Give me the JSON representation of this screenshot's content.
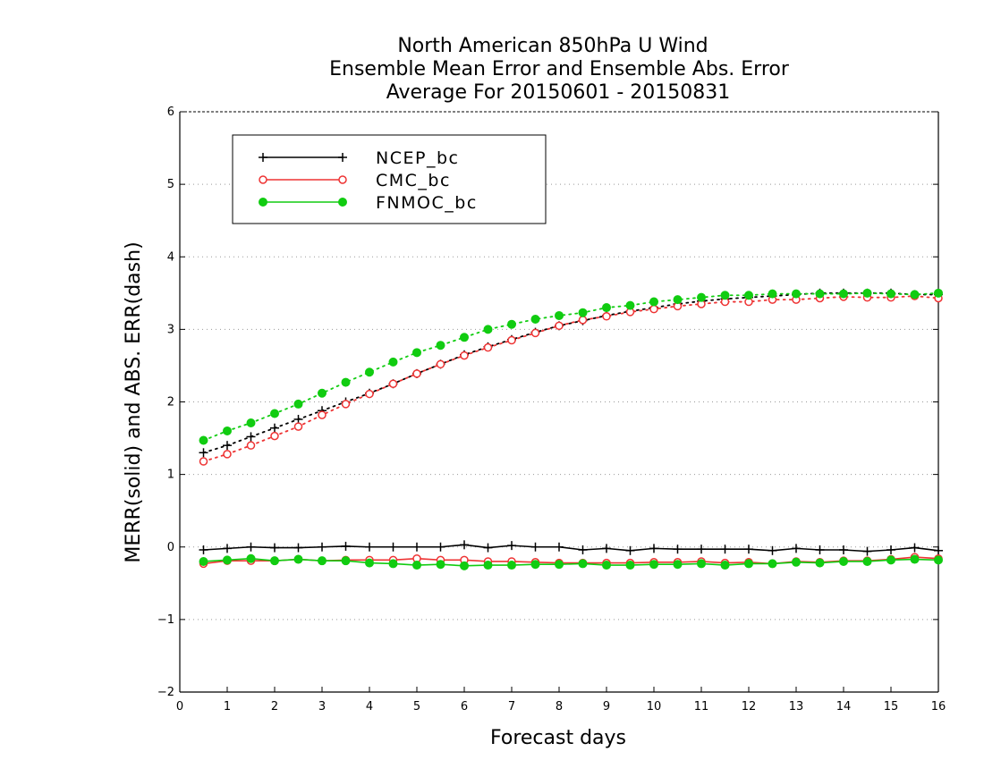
{
  "chart_data": {
    "type": "line",
    "title": [
      "North American 850hPa U Wind",
      "Ensemble Mean Error and Ensemble Abs. Error",
      "Average For 20150601 - 20150831"
    ],
    "xlabel": "Forecast days",
    "ylabel": "MERR(solid) and ABS. ERR(dash)",
    "xlim": [
      0,
      16
    ],
    "ylim": [
      -2,
      6
    ],
    "xticks": [
      0,
      1,
      2,
      3,
      4,
      5,
      6,
      7,
      8,
      9,
      10,
      11,
      12,
      13,
      14,
      15,
      16
    ],
    "yticks": [
      -2,
      -1,
      0,
      1,
      2,
      3,
      4,
      5,
      6
    ],
    "ytick_labels": [
      "−2",
      "−1",
      "0",
      "1",
      "2",
      "3",
      "4",
      "5",
      "6"
    ],
    "grid": "horizontal dotted",
    "legend_position": "top-left",
    "x": [
      0.5,
      1.0,
      1.5,
      2.0,
      2.5,
      3.0,
      3.5,
      4.0,
      4.5,
      5.0,
      5.5,
      6.0,
      6.5,
      7.0,
      7.5,
      8.0,
      8.5,
      9.0,
      9.5,
      10.0,
      10.5,
      11.0,
      11.5,
      12.0,
      12.5,
      13.0,
      13.5,
      14.0,
      14.5,
      15.0,
      15.5,
      16.0
    ],
    "series": [
      {
        "name": "NCEP_bc",
        "color": "#000000",
        "marker": "plus",
        "merr": [
          -0.04,
          -0.02,
          0.0,
          -0.01,
          -0.01,
          0.0,
          0.01,
          0.0,
          0.0,
          0.0,
          0.0,
          0.03,
          -0.01,
          0.02,
          0.0,
          0.0,
          -0.04,
          -0.02,
          -0.05,
          -0.02,
          -0.03,
          -0.03,
          -0.03,
          -0.03,
          -0.05,
          -0.02,
          -0.04,
          -0.04,
          -0.06,
          -0.04,
          -0.01,
          -0.05
        ],
        "abs_err": [
          1.3,
          1.4,
          1.52,
          1.64,
          1.76,
          1.88,
          2.0,
          2.12,
          2.25,
          2.39,
          2.52,
          2.65,
          2.76,
          2.86,
          2.96,
          3.05,
          3.12,
          3.19,
          3.25,
          3.3,
          3.35,
          3.39,
          3.42,
          3.44,
          3.46,
          3.48,
          3.5,
          3.5,
          3.5,
          3.5,
          3.48,
          3.48
        ]
      },
      {
        "name": "CMC_bc",
        "color": "#ee3333",
        "marker": "open-circle",
        "merr": [
          -0.23,
          -0.19,
          -0.19,
          -0.19,
          -0.17,
          -0.19,
          -0.18,
          -0.18,
          -0.18,
          -0.16,
          -0.18,
          -0.18,
          -0.2,
          -0.2,
          -0.21,
          -0.22,
          -0.22,
          -0.22,
          -0.22,
          -0.21,
          -0.21,
          -0.2,
          -0.22,
          -0.21,
          -0.23,
          -0.2,
          -0.21,
          -0.19,
          -0.19,
          -0.17,
          -0.14,
          -0.16
        ],
        "abs_err": [
          1.18,
          1.28,
          1.4,
          1.53,
          1.66,
          1.82,
          1.97,
          2.11,
          2.25,
          2.39,
          2.52,
          2.64,
          2.75,
          2.85,
          2.95,
          3.05,
          3.13,
          3.18,
          3.24,
          3.28,
          3.32,
          3.35,
          3.38,
          3.38,
          3.41,
          3.41,
          3.43,
          3.45,
          3.44,
          3.44,
          3.46,
          3.43
        ]
      },
      {
        "name": "FNMOC_bc",
        "color": "#11cc11",
        "marker": "filled-circle",
        "merr": [
          -0.2,
          -0.18,
          -0.16,
          -0.19,
          -0.17,
          -0.19,
          -0.19,
          -0.22,
          -0.23,
          -0.25,
          -0.24,
          -0.26,
          -0.25,
          -0.25,
          -0.24,
          -0.24,
          -0.23,
          -0.25,
          -0.25,
          -0.24,
          -0.24,
          -0.23,
          -0.25,
          -0.23,
          -0.23,
          -0.21,
          -0.22,
          -0.2,
          -0.2,
          -0.18,
          -0.17,
          -0.18
        ],
        "abs_err": [
          1.47,
          1.6,
          1.71,
          1.84,
          1.97,
          2.12,
          2.27,
          2.41,
          2.55,
          2.68,
          2.78,
          2.89,
          3.0,
          3.07,
          3.14,
          3.19,
          3.23,
          3.3,
          3.33,
          3.38,
          3.41,
          3.44,
          3.47,
          3.47,
          3.49,
          3.49,
          3.49,
          3.49,
          3.5,
          3.49,
          3.48,
          3.5
        ]
      }
    ]
  }
}
